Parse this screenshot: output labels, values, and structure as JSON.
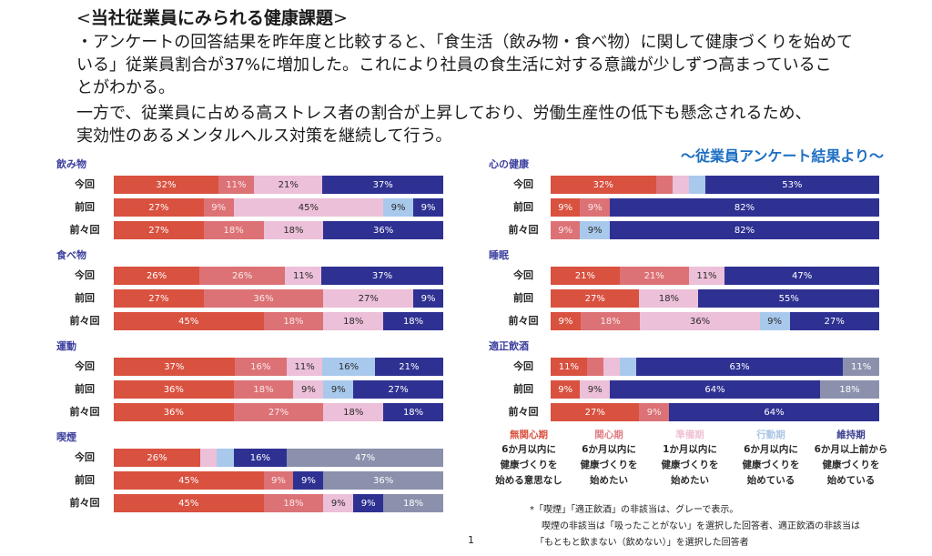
{
  "header": {
    "title_open": "<",
    "title": "当社従業員にみられる健康課題",
    "title_close": ">",
    "body_lines": [
      "・アンケートの回答結果を昨年度と比較すると、「食生活（飲み物・食べ物）に関して健康づくりを始めて",
      "いる」従業員割合が37%に増加した。これにより社員の食生活に対する意識が少しずつ高まっているこ",
      "とがわかる。",
      "一方で、従業員に占める高ストレス者の割合が上昇しており、労働生産性の低下も懸念されるため、",
      "実効性のあるメンタルヘルス対策を継続して行う。"
    ],
    "subtitle": "～従業員アンケート結果より～"
  },
  "legend": {
    "stages": [
      {
        "name": "無関心期",
        "color": "#d9513f",
        "name_color": "#d9513f",
        "desc": [
          "6か月以内に",
          "健康づくりを",
          "始める意思なし"
        ]
      },
      {
        "name": "関心期",
        "color": "#dc7276",
        "name_color": "#e07f86",
        "desc": [
          "6か月以内に",
          "健康づくりを",
          "始めたい"
        ]
      },
      {
        "name": "準備期",
        "color": "#ecc0d8",
        "name_color": "#f0c2d6",
        "desc": [
          "1か月以内に",
          "健康づくりを",
          "始めたい"
        ]
      },
      {
        "name": "行動期",
        "color": "#a9c9ec",
        "name_color": "#aac6e4",
        "desc": [
          "6か月以内に",
          "健康づくりを",
          "始めている"
        ]
      },
      {
        "name": "維持期",
        "color": "#2e3192",
        "name_color": "#3a3d8f",
        "desc": [
          "6か月以上前から",
          "健康づくりを",
          "始めている"
        ]
      }
    ],
    "not_applicable": {
      "name": "非該当",
      "color": "#8b91ac"
    }
  },
  "notes": [
    "*「喫煙」「適正飲酒」の非該当は、グレーで表示。",
    "喫煙の非該当は「吸ったことがない」を選択した回答者、適正飲酒の非該当は",
    "「もともと飲まない（飲めない）」を選択した回答者"
  ],
  "page_number": "1",
  "chart_data": [
    {
      "type": "bar",
      "orientation": "horizontal",
      "stacked": true,
      "unit": "%",
      "title": "飲み物",
      "categories": [
        "今回",
        "前回",
        "前々回"
      ],
      "rows": [
        [
          {
            "s": 0,
            "v": 32
          },
          {
            "s": 1,
            "v": 11
          },
          {
            "s": 2,
            "v": 21
          },
          {
            "s": 4,
            "v": 37
          }
        ],
        [
          {
            "s": 0,
            "v": 27
          },
          {
            "s": 1,
            "v": 9
          },
          {
            "s": 2,
            "v": 45
          },
          {
            "s": 3,
            "v": 9
          },
          {
            "s": 4,
            "v": 9
          }
        ],
        [
          {
            "s": 0,
            "v": 27
          },
          {
            "s": 1,
            "v": 18
          },
          {
            "s": 2,
            "v": 18
          },
          {
            "s": 4,
            "v": 36
          }
        ]
      ]
    },
    {
      "type": "bar",
      "orientation": "horizontal",
      "stacked": true,
      "unit": "%",
      "title": "食べ物",
      "categories": [
        "今回",
        "前回",
        "前々回"
      ],
      "rows": [
        [
          {
            "s": 0,
            "v": 26
          },
          {
            "s": 1,
            "v": 26
          },
          {
            "s": 2,
            "v": 11
          },
          {
            "s": 4,
            "v": 37
          }
        ],
        [
          {
            "s": 0,
            "v": 27
          },
          {
            "s": 1,
            "v": 36
          },
          {
            "s": 2,
            "v": 27
          },
          {
            "s": 4,
            "v": 9
          }
        ],
        [
          {
            "s": 0,
            "v": 45
          },
          {
            "s": 1,
            "v": 18
          },
          {
            "s": 2,
            "v": 18
          },
          {
            "s": 4,
            "v": 18
          }
        ]
      ]
    },
    {
      "type": "bar",
      "orientation": "horizontal",
      "stacked": true,
      "unit": "%",
      "title": "運動",
      "categories": [
        "今回",
        "前回",
        "前々回"
      ],
      "rows": [
        [
          {
            "s": 0,
            "v": 37
          },
          {
            "s": 1,
            "v": 16
          },
          {
            "s": 2,
            "v": 11
          },
          {
            "s": 3,
            "v": 16
          },
          {
            "s": 4,
            "v": 21
          }
        ],
        [
          {
            "s": 0,
            "v": 36
          },
          {
            "s": 1,
            "v": 18
          },
          {
            "s": 2,
            "v": 9
          },
          {
            "s": 3,
            "v": 9
          },
          {
            "s": 4,
            "v": 27
          }
        ],
        [
          {
            "s": 0,
            "v": 36
          },
          {
            "s": 1,
            "v": 27
          },
          {
            "s": 2,
            "v": 18
          },
          {
            "s": 4,
            "v": 18
          }
        ]
      ]
    },
    {
      "type": "bar",
      "orientation": "horizontal",
      "stacked": true,
      "unit": "%",
      "title": "喫煙",
      "categories": [
        "今回",
        "前回",
        "前々回"
      ],
      "rows": [
        [
          {
            "s": 0,
            "v": 26
          },
          {
            "s": 2,
            "v": 5,
            "unlabeled": true
          },
          {
            "s": 3,
            "v": 5,
            "unlabeled": true
          },
          {
            "s": 4,
            "v": 16
          },
          {
            "s": 5,
            "v": 47
          }
        ],
        [
          {
            "s": 0,
            "v": 45
          },
          {
            "s": 1,
            "v": 9
          },
          {
            "s": 4,
            "v": 9
          },
          {
            "s": 5,
            "v": 36
          }
        ],
        [
          {
            "s": 0,
            "v": 45
          },
          {
            "s": 1,
            "v": 18
          },
          {
            "s": 2,
            "v": 9
          },
          {
            "s": 4,
            "v": 9
          },
          {
            "s": 5,
            "v": 18
          }
        ]
      ]
    },
    {
      "type": "bar",
      "orientation": "horizontal",
      "stacked": true,
      "unit": "%",
      "title": "心の健康",
      "categories": [
        "今回",
        "前回",
        "前々回"
      ],
      "rows": [
        [
          {
            "s": 0,
            "v": 32
          },
          {
            "s": 1,
            "v": 5,
            "unlabeled": true
          },
          {
            "s": 2,
            "v": 5,
            "unlabeled": true
          },
          {
            "s": 3,
            "v": 5,
            "unlabeled": true
          },
          {
            "s": 4,
            "v": 53
          }
        ],
        [
          {
            "s": 0,
            "v": 9
          },
          {
            "s": 1,
            "v": 9
          },
          {
            "s": 4,
            "v": 82
          }
        ],
        [
          {
            "s": 1,
            "v": 9
          },
          {
            "s": 3,
            "v": 9
          },
          {
            "s": 4,
            "v": 82
          }
        ]
      ]
    },
    {
      "type": "bar",
      "orientation": "horizontal",
      "stacked": true,
      "unit": "%",
      "title": "睡眠",
      "categories": [
        "今回",
        "前回",
        "前々回"
      ],
      "rows": [
        [
          {
            "s": 0,
            "v": 21
          },
          {
            "s": 1,
            "v": 21
          },
          {
            "s": 2,
            "v": 11
          },
          {
            "s": 4,
            "v": 47
          }
        ],
        [
          {
            "s": 0,
            "v": 27
          },
          {
            "s": 2,
            "v": 18
          },
          {
            "s": 4,
            "v": 55
          }
        ],
        [
          {
            "s": 0,
            "v": 9
          },
          {
            "s": 1,
            "v": 18
          },
          {
            "s": 2,
            "v": 36
          },
          {
            "s": 3,
            "v": 9
          },
          {
            "s": 4,
            "v": 27
          }
        ]
      ]
    },
    {
      "type": "bar",
      "orientation": "horizontal",
      "stacked": true,
      "unit": "%",
      "title": "適正飲酒",
      "categories": [
        "今回",
        "前回",
        "前々回"
      ],
      "rows": [
        [
          {
            "s": 0,
            "v": 11
          },
          {
            "s": 1,
            "v": 5,
            "unlabeled": true
          },
          {
            "s": 2,
            "v": 5,
            "unlabeled": true
          },
          {
            "s": 3,
            "v": 5,
            "unlabeled": true
          },
          {
            "s": 4,
            "v": 63
          },
          {
            "s": 5,
            "v": 11
          }
        ],
        [
          {
            "s": 0,
            "v": 9
          },
          {
            "s": 2,
            "v": 9
          },
          {
            "s": 4,
            "v": 64
          },
          {
            "s": 5,
            "v": 18
          }
        ],
        [
          {
            "s": 0,
            "v": 27
          },
          {
            "s": 1,
            "v": 9
          },
          {
            "s": 4,
            "v": 64
          }
        ]
      ]
    }
  ]
}
